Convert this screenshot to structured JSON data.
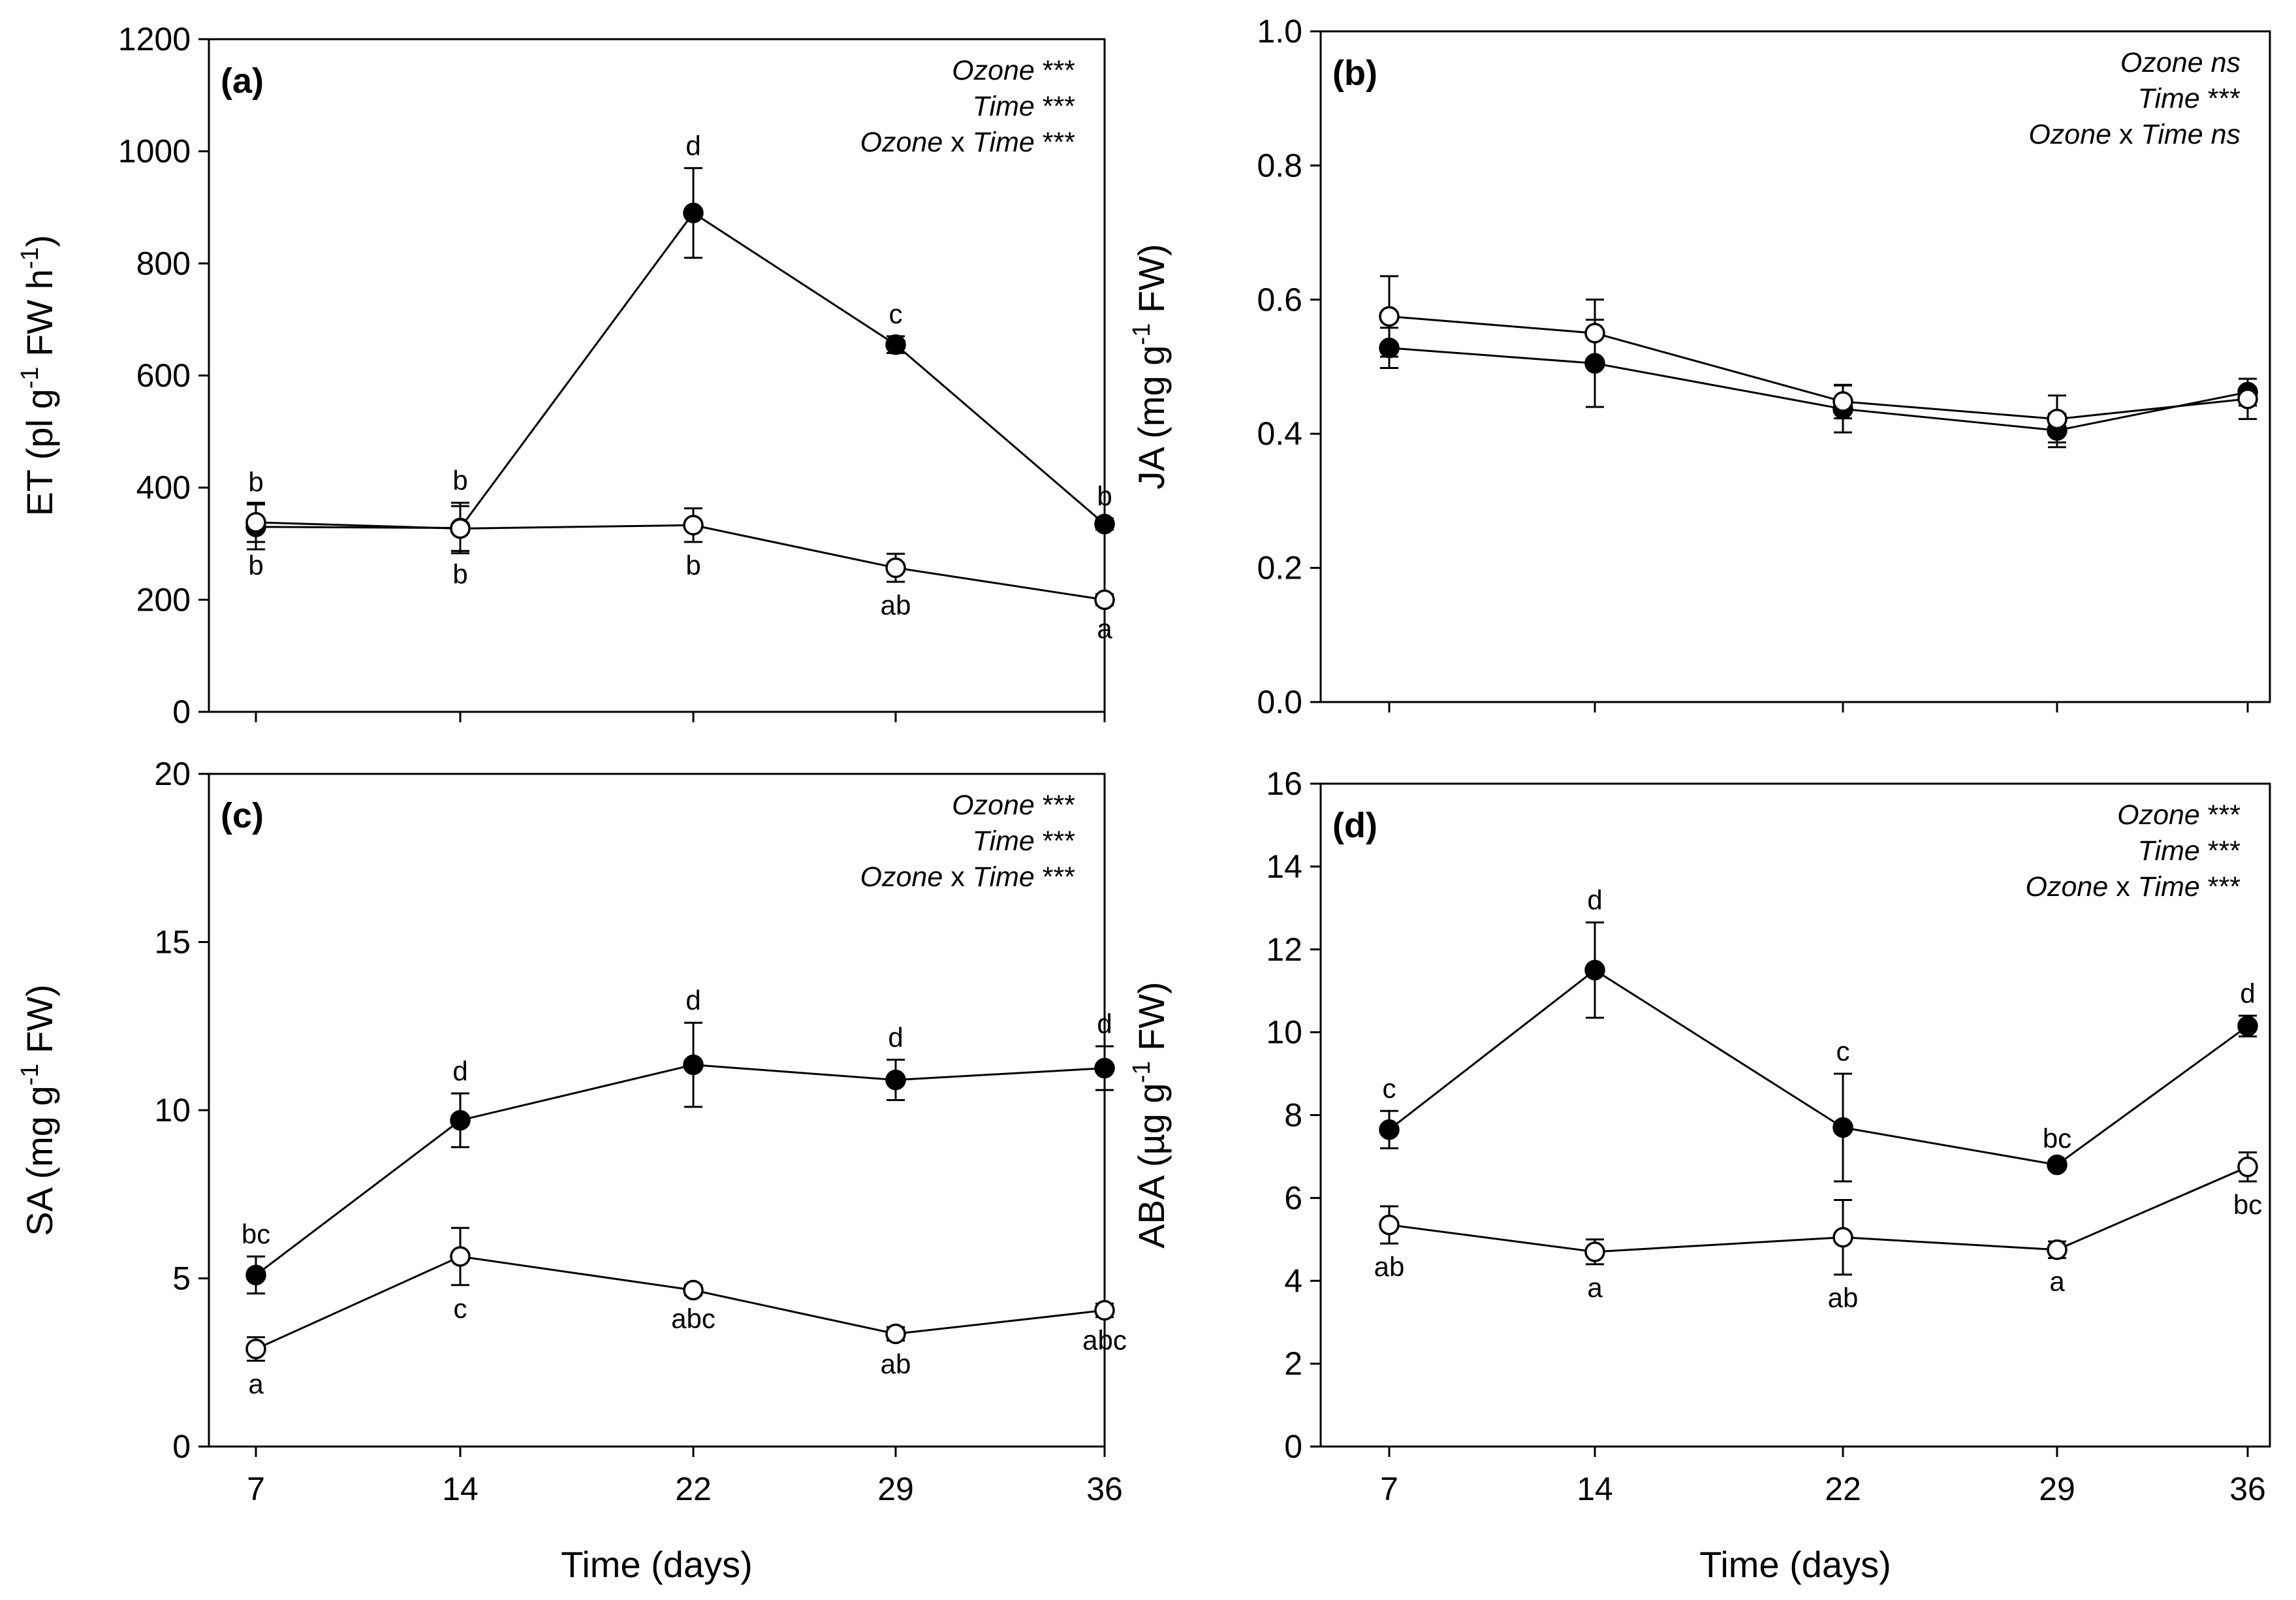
{
  "chart_data": [
    {
      "type": "line",
      "panel_label": "(a)",
      "ylabel": {
        "main": "ET (pl g",
        "sup1": "-1",
        "mid": " FW h",
        "sup2": "-1",
        "end": ")"
      },
      "xlabel": "",
      "x": [
        7,
        14,
        22,
        29,
        36
      ],
      "x_ticks": [
        "7",
        "14",
        "22",
        "29",
        "36"
      ],
      "ylim": [
        0,
        1200
      ],
      "y_ticks": [
        "0",
        "200",
        "400",
        "600",
        "800",
        "1000",
        "1200"
      ],
      "show_x_tick_labels": false,
      "stats": [
        {
          "parts": [
            {
              "t": "Ozone",
              "i": true
            },
            {
              "t": " ***",
              "i": false
            }
          ]
        },
        {
          "parts": [
            {
              "t": "Time",
              "i": true
            },
            {
              "t": " ***",
              "i": false
            }
          ]
        },
        {
          "parts": [
            {
              "t": "Ozone",
              "i": true
            },
            {
              "t": " x ",
              "i": false
            },
            {
              "t": "Time",
              "i": true
            },
            {
              "t": " ***",
              "i": false
            }
          ]
        }
      ],
      "series": [
        {
          "name": "filled",
          "marker": "filled-circle",
          "values": [
            330,
            328,
            890,
            655,
            335
          ],
          "errors": [
            40,
            45,
            80,
            15,
            10
          ],
          "letters": [
            "b",
            "b",
            "d",
            "c",
            "b"
          ],
          "letter_pos": [
            "above",
            "above",
            "above",
            "above",
            "above"
          ]
        },
        {
          "name": "open",
          "marker": "open-circle",
          "values": [
            338,
            327,
            333,
            257,
            200
          ],
          "errors": [
            35,
            40,
            30,
            25,
            10
          ],
          "letters": [
            "b",
            "b",
            "b",
            "ab",
            "a"
          ],
          "letter_pos": [
            "below",
            "below",
            "below",
            "below",
            "below"
          ]
        }
      ]
    },
    {
      "type": "line",
      "panel_label": "(b)",
      "ylabel": {
        "main": "JA (mg g",
        "sup1": "-1",
        "mid": " FW)",
        "sup2": "",
        "end": ""
      },
      "xlabel": "",
      "x": [
        7,
        14,
        22,
        29,
        36
      ],
      "x_ticks": [
        "7",
        "14",
        "22",
        "29",
        "36"
      ],
      "ylim": [
        0,
        1.0
      ],
      "y_ticks": [
        "0.0",
        "0.2",
        "0.4",
        "0.6",
        "0.8",
        "1.0"
      ],
      "show_x_tick_labels": false,
      "stats": [
        {
          "parts": [
            {
              "t": "Ozone",
              "i": true
            },
            {
              "t": " ",
              "i": false
            },
            {
              "t": "ns",
              "i": true
            }
          ]
        },
        {
          "parts": [
            {
              "t": "Time",
              "i": true
            },
            {
              "t": " ***",
              "i": false
            }
          ]
        },
        {
          "parts": [
            {
              "t": "Ozone",
              "i": true
            },
            {
              "t": " x ",
              "i": false
            },
            {
              "t": "Time",
              "i": true
            },
            {
              "t": " ",
              "i": false
            },
            {
              "t": "ns",
              "i": true
            }
          ]
        }
      ],
      "series": [
        {
          "name": "filled",
          "marker": "filled-circle",
          "values": [
            0.528,
            0.505,
            0.437,
            0.405,
            0.462
          ],
          "errors": [
            0.03,
            0.065,
            0.035,
            0.025,
            0.02
          ],
          "letters": [
            "",
            "",
            "",
            "",
            ""
          ],
          "letter_pos": [
            "",
            "",
            "",
            "",
            ""
          ]
        },
        {
          "name": "open",
          "marker": "open-circle",
          "values": [
            0.575,
            0.55,
            0.448,
            0.422,
            0.452
          ],
          "errors": [
            0.06,
            0.05,
            0.025,
            0.035,
            0.03
          ],
          "letters": [
            "",
            "",
            "",
            "",
            ""
          ],
          "letter_pos": [
            "",
            "",
            "",
            "",
            ""
          ]
        }
      ]
    },
    {
      "type": "line",
      "panel_label": "(c)",
      "ylabel": {
        "main": "SA (mg g",
        "sup1": "-1",
        "mid": " FW)",
        "sup2": "",
        "end": ""
      },
      "xlabel": "Time (days)",
      "x": [
        7,
        14,
        22,
        29,
        36
      ],
      "x_ticks": [
        "7",
        "14",
        "22",
        "29",
        "36"
      ],
      "ylim": [
        0,
        20
      ],
      "y_ticks": [
        "0",
        "5",
        "10",
        "15",
        "20"
      ],
      "show_x_tick_labels": true,
      "stats": [
        {
          "parts": [
            {
              "t": "Ozone",
              "i": true
            },
            {
              "t": " ***",
              "i": false
            }
          ]
        },
        {
          "parts": [
            {
              "t": "Time",
              "i": true
            },
            {
              "t": " ***",
              "i": false
            }
          ]
        },
        {
          "parts": [
            {
              "t": "Ozone",
              "i": true
            },
            {
              "t": " x ",
              "i": false
            },
            {
              "t": "Time",
              "i": true
            },
            {
              "t": " ***",
              "i": false
            }
          ]
        }
      ],
      "series": [
        {
          "name": "filled",
          "marker": "filled-circle",
          "values": [
            5.1,
            9.7,
            11.35,
            10.9,
            11.25
          ],
          "errors": [
            0.55,
            0.8,
            1.25,
            0.6,
            0.65
          ],
          "letters": [
            "bc",
            "d",
            "d",
            "d",
            "d"
          ],
          "letter_pos": [
            "above",
            "above",
            "above",
            "above",
            "above"
          ]
        },
        {
          "name": "open",
          "marker": "open-circle",
          "values": [
            2.9,
            5.65,
            4.65,
            3.35,
            4.05
          ],
          "errors": [
            0.35,
            0.85,
            0.15,
            0.2,
            0.2
          ],
          "letters": [
            "a",
            "c",
            "abc",
            "ab",
            "abc"
          ],
          "letter_pos": [
            "below",
            "below",
            "below",
            "below",
            "below"
          ]
        }
      ]
    },
    {
      "type": "line",
      "panel_label": "(d)",
      "ylabel": {
        "main": "ABA (µg g",
        "sup1": "-1",
        "mid": " FW)",
        "sup2": "",
        "end": ""
      },
      "xlabel": "Time (days)",
      "x": [
        7,
        14,
        22,
        29,
        36
      ],
      "x_ticks": [
        "7",
        "14",
        "22",
        "29",
        "36"
      ],
      "ylim": [
        0,
        16
      ],
      "y_ticks": [
        "0",
        "2",
        "4",
        "6",
        "8",
        "10",
        "12",
        "14",
        "16"
      ],
      "show_x_tick_labels": true,
      "stats": [
        {
          "parts": [
            {
              "t": "Ozone",
              "i": true
            },
            {
              "t": " ***",
              "i": false
            }
          ]
        },
        {
          "parts": [
            {
              "t": "Time",
              "i": true
            },
            {
              "t": " ***",
              "i": false
            }
          ]
        },
        {
          "parts": [
            {
              "t": "Ozone",
              "i": true
            },
            {
              "t": " x ",
              "i": false
            },
            {
              "t": "Time",
              "i": true
            },
            {
              "t": " ***",
              "i": false
            }
          ]
        }
      ],
      "series": [
        {
          "name": "filled",
          "marker": "filled-circle",
          "values": [
            7.65,
            11.5,
            7.7,
            6.8,
            10.15
          ],
          "errors": [
            0.45,
            1.15,
            1.3,
            0.1,
            0.25
          ],
          "letters": [
            "c",
            "d",
            "c",
            "bc",
            "d"
          ],
          "letter_pos": [
            "above",
            "above",
            "above",
            "above",
            "above"
          ]
        },
        {
          "name": "open",
          "marker": "open-circle",
          "values": [
            5.35,
            4.7,
            5.05,
            4.75,
            6.75
          ],
          "errors": [
            0.45,
            0.3,
            0.9,
            0.2,
            0.35
          ],
          "letters": [
            "ab",
            "a",
            "ab",
            "a",
            "bc"
          ],
          "letter_pos": [
            "below",
            "below",
            "below",
            "below",
            "below"
          ]
        }
      ]
    }
  ]
}
